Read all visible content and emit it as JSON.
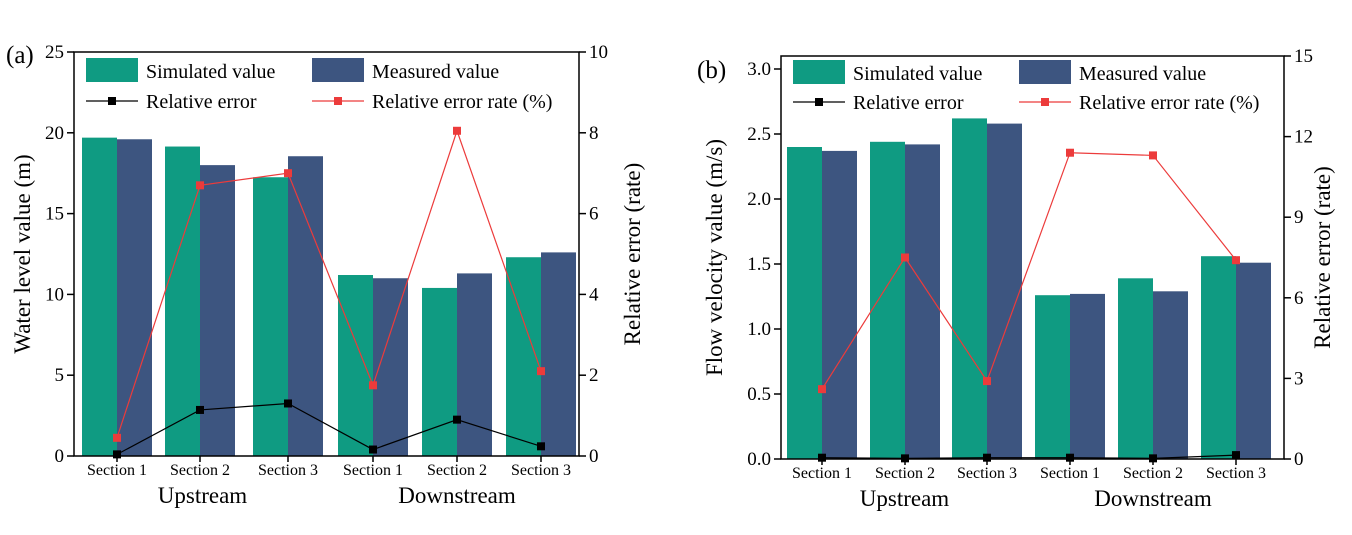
{
  "colors": {
    "simulated": "#0f9b82",
    "measured": "#3d5580",
    "abs_error": "#000000",
    "rate": "#ec3b3b"
  },
  "legend_labels": {
    "simulated": "Simulated value",
    "measured": "Measured value",
    "abs_error": "Relative error",
    "rate": "Relative error rate (%)"
  },
  "chart_data": [
    {
      "type": "bar",
      "panel_label": "(a)",
      "categories": [
        "Section 1",
        "Section 2",
        "Section 3",
        "Section 1",
        "Section 2",
        "Section 3"
      ],
      "groups": [
        "Upstream",
        "Downstream"
      ],
      "ylabel": "Water level value (m)",
      "y2label": "Relative error (rate)",
      "ylim": [
        0,
        25
      ],
      "y2lim": [
        0,
        10
      ],
      "yticks": [
        0,
        5,
        10,
        15,
        20,
        25
      ],
      "y2ticks": [
        0,
        2,
        4,
        6,
        8,
        10
      ],
      "legend_position": "top",
      "series": [
        {
          "name": "Simulated value",
          "kind": "bar",
          "axis": "left",
          "values": [
            19.7,
            19.15,
            17.25,
            11.2,
            10.4,
            12.3
          ]
        },
        {
          "name": "Measured value",
          "kind": "bar",
          "axis": "left",
          "values": [
            19.6,
            18.0,
            18.55,
            11.0,
            11.3,
            12.6
          ]
        },
        {
          "name": "Relative error",
          "kind": "line",
          "axis": "left",
          "values": [
            0.1,
            2.85,
            3.25,
            0.4,
            2.25,
            0.6
          ]
        },
        {
          "name": "Relative error rate (%)",
          "kind": "line",
          "axis": "right",
          "values": [
            0.45,
            6.7,
            7.0,
            1.75,
            8.05,
            2.1
          ]
        }
      ]
    },
    {
      "type": "bar",
      "panel_label": "(b)",
      "categories": [
        "Section 1",
        "Section 2",
        "Section 3",
        "Section 1",
        "Section 2",
        "Section 3"
      ],
      "groups": [
        "Upstream",
        "Downstream"
      ],
      "ylabel": "Flow velocity value (m/s)",
      "y2label": "Relative error (rate)",
      "ylim": [
        0,
        3.1
      ],
      "y2lim": [
        0,
        15
      ],
      "yticks": [
        "0.0",
        "0.5",
        "1.0",
        "1.5",
        "2.0",
        "2.5",
        "3.0"
      ],
      "y2ticks": [
        0,
        3,
        6,
        9,
        12,
        15
      ],
      "legend_position": "top",
      "series": [
        {
          "name": "Simulated value",
          "kind": "bar",
          "axis": "left",
          "values": [
            2.4,
            2.44,
            2.62,
            1.26,
            1.39,
            1.56
          ]
        },
        {
          "name": "Measured value",
          "kind": "bar",
          "axis": "left",
          "values": [
            2.37,
            2.42,
            2.58,
            1.27,
            1.29,
            1.51
          ]
        },
        {
          "name": "Relative error",
          "kind": "line",
          "axis": "left",
          "values": [
            0.01,
            0.005,
            0.01,
            0.01,
            0.005,
            0.03
          ]
        },
        {
          "name": "Relative error rate (%)",
          "kind": "line",
          "axis": "right",
          "values": [
            2.6,
            7.5,
            2.9,
            11.4,
            11.3,
            7.4
          ]
        }
      ]
    }
  ]
}
